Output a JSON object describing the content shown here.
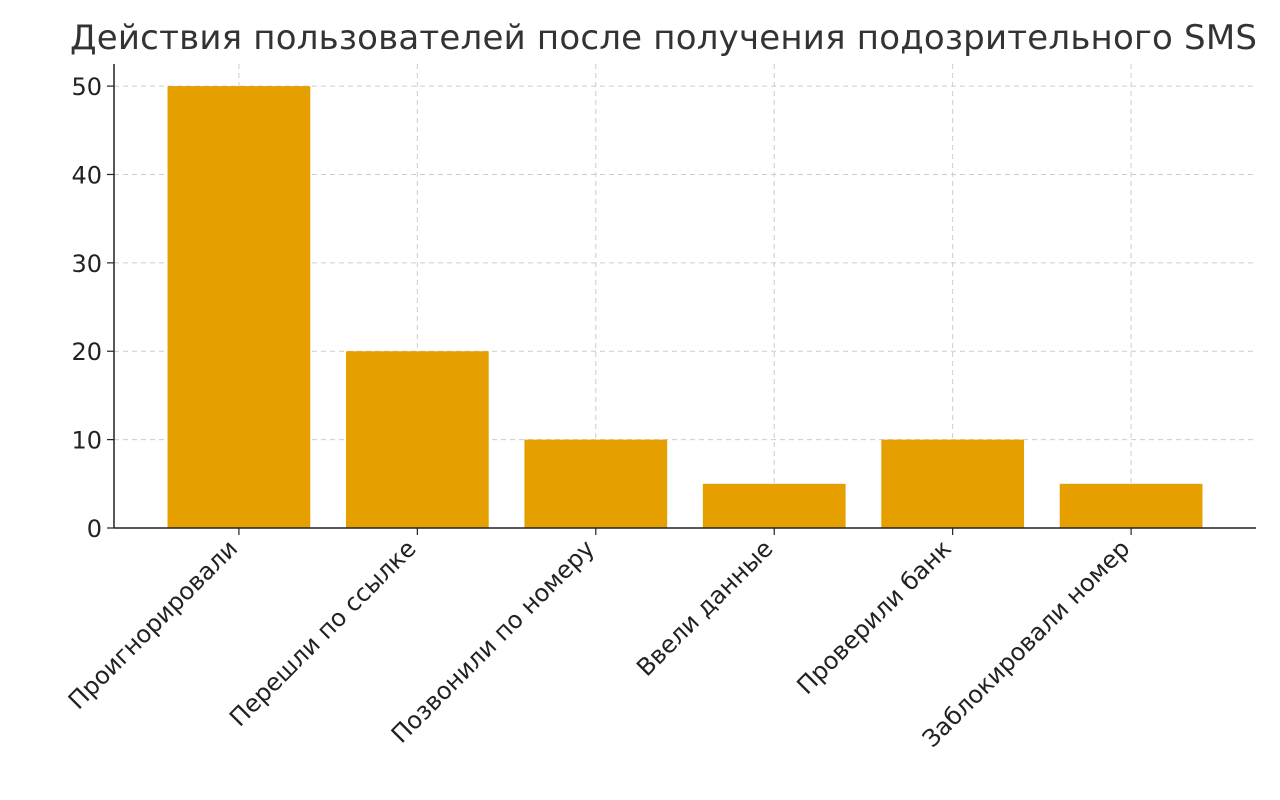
{
  "chart_data": {
    "type": "bar",
    "title": "Действия пользователей после получения подозрительного SMS",
    "xlabel": "",
    "ylabel": "",
    "categories": [
      "Проигнорировали",
      "Перешли по ссылке",
      "Позвонили по номеру",
      "Ввели данные",
      "Проверили банк",
      "Заблокировали номер"
    ],
    "values": [
      50,
      20,
      10,
      5,
      10,
      5
    ],
    "ylim": [
      0,
      52.5
    ],
    "yticks": [
      0,
      10,
      20,
      30,
      40,
      50
    ],
    "grid": true,
    "legend": "none",
    "colors": {
      "bar": "#E5A000",
      "grid": "#cccccc",
      "axis": "#222222"
    }
  }
}
